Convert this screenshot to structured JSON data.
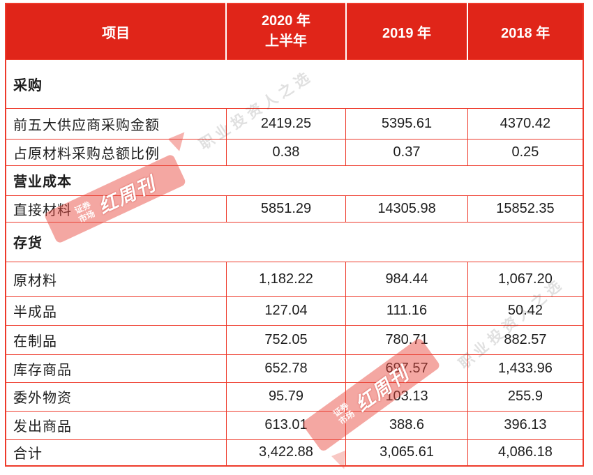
{
  "colors": {
    "header_bg": "#e02519",
    "grid_border": "#ee3a2b",
    "cell_text": "#1d1d1d",
    "header_text": "#ffffff",
    "stamp_red": "#e9483d",
    "watermark_gray": "#bdbdbd"
  },
  "table": {
    "header": {
      "item": "项目",
      "y2020_line1": "2020 年",
      "y2020_line2": "上半年",
      "y2019": "2019 年",
      "y2018": "2018 年"
    },
    "sections": [
      {
        "title": "采购",
        "rows": [
          {
            "label": "前五大供应商采购金额",
            "values": [
              "2419.25",
              "5395.61",
              "4370.42"
            ]
          },
          {
            "label": "占原材料采购总额比例",
            "values": [
              "0.38",
              "0.37",
              "0.25"
            ]
          }
        ]
      },
      {
        "title": "营业成本",
        "rows": [
          {
            "label": "直接材料",
            "values": [
              "5851.29",
              "14305.98",
              "15852.35"
            ]
          }
        ]
      },
      {
        "title": "存货",
        "rows": [
          {
            "label": "原材料",
            "values": [
              "1,182.22",
              "984.44",
              "1,067.20"
            ]
          },
          {
            "label": "半成品",
            "values": [
              "127.04",
              "111.16",
              "50.42"
            ]
          },
          {
            "label": "在制品",
            "values": [
              "752.05",
              "780.71",
              "882.57"
            ]
          },
          {
            "label": "库存商品",
            "values": [
              "652.78",
              "697.57",
              "1,433.96"
            ]
          },
          {
            "label": "委外物资",
            "values": [
              "95.79",
              "103.13",
              "255.9"
            ]
          },
          {
            "label": "发出商品",
            "values": [
              "613.01",
              "388.6",
              "396.13"
            ]
          },
          {
            "label": "合计",
            "values": [
              "3,422.88",
              "3,065.61",
              "4,086.18"
            ]
          }
        ]
      }
    ]
  },
  "watermarks": {
    "gray_text": "职业投资人之选",
    "stamp_small_text": "证券市场",
    "stamp_large_text": "红周刊"
  }
}
